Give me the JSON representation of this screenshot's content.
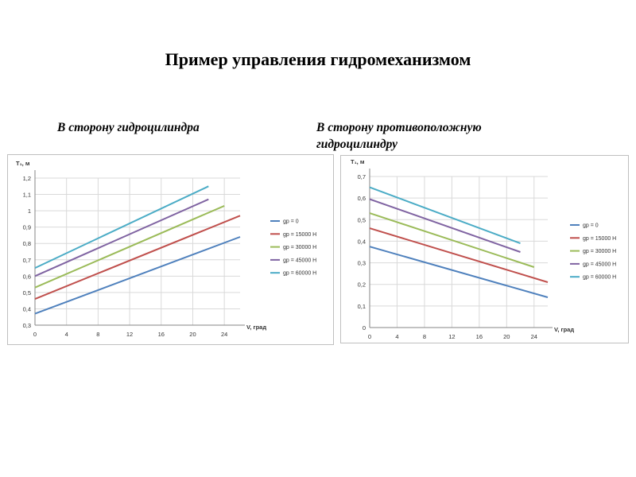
{
  "page": {
    "title": "Пример управления гидромеханизмом",
    "subtitle_left": "В сторону гидроцилиндра",
    "subtitle_right": "В сторону противоположную гидроцилиндру"
  },
  "chart_data": [
    {
      "type": "line",
      "ylabel": "T₁, м",
      "xlabel": "V, град",
      "xlim": [
        0,
        26
      ],
      "ylim": [
        0.3,
        1.2
      ],
      "xticks": [
        0,
        4,
        8,
        12,
        16,
        20,
        24
      ],
      "yticks": [
        0.3,
        0.4,
        0.5,
        0.6,
        0.7,
        0.8,
        0.9,
        1.0,
        1.1,
        1.2
      ],
      "ytick_labels": [
        "0,3",
        "0,4",
        "0,5",
        "0,6",
        "0,7",
        "0,8",
        "0,9",
        "1",
        "1,1",
        "1,2"
      ],
      "grid": true,
      "legend_position": "right",
      "series": [
        {
          "name": "gp = 0",
          "color": "#4f81bd",
          "x": [
            0,
            26
          ],
          "y": [
            0.37,
            0.84
          ]
        },
        {
          "name": "gp = 15000 H",
          "color": "#c0504d",
          "x": [
            0,
            26
          ],
          "y": [
            0.46,
            0.97
          ]
        },
        {
          "name": "gp = 30000 H",
          "color": "#9bbb59",
          "x": [
            0,
            24
          ],
          "y": [
            0.53,
            1.03
          ]
        },
        {
          "name": "gp = 45000 H",
          "color": "#8064a2",
          "x": [
            0,
            22
          ],
          "y": [
            0.6,
            1.07
          ]
        },
        {
          "name": "gp = 60000 H",
          "color": "#4bacc6",
          "x": [
            0,
            22
          ],
          "y": [
            0.65,
            1.15
          ]
        }
      ]
    },
    {
      "type": "line",
      "ylabel": "T₁, м",
      "xlabel": "V, град",
      "xlim": [
        0,
        26
      ],
      "ylim": [
        0,
        0.7
      ],
      "xticks": [
        0,
        4,
        8,
        12,
        16,
        20,
        24
      ],
      "yticks": [
        0,
        0.1,
        0.2,
        0.3,
        0.4,
        0.5,
        0.6,
        0.7
      ],
      "ytick_labels": [
        "0",
        "0,1",
        "0,2",
        "0,3",
        "0,4",
        "0,5",
        "0,6",
        "0,7"
      ],
      "grid": true,
      "legend_position": "right",
      "series": [
        {
          "name": "gp = 0",
          "color": "#4f81bd",
          "x": [
            0,
            26
          ],
          "y": [
            0.375,
            0.14
          ]
        },
        {
          "name": "gp = 15000 H",
          "color": "#c0504d",
          "x": [
            0,
            26
          ],
          "y": [
            0.46,
            0.21
          ]
        },
        {
          "name": "gp = 30000 H",
          "color": "#9bbb59",
          "x": [
            0,
            24
          ],
          "y": [
            0.53,
            0.28
          ]
        },
        {
          "name": "gp = 45000 H",
          "color": "#8064a2",
          "x": [
            0,
            22
          ],
          "y": [
            0.595,
            0.35
          ]
        },
        {
          "name": "gp = 60000 H",
          "color": "#4bacc6",
          "x": [
            0,
            22
          ],
          "y": [
            0.65,
            0.39
          ]
        }
      ]
    }
  ]
}
